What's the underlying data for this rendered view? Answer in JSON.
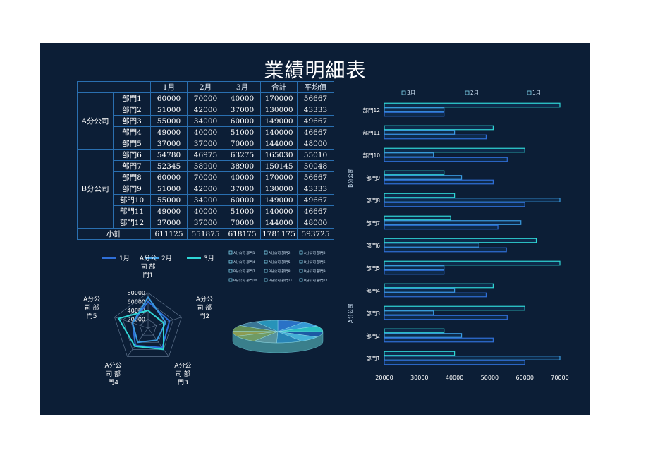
{
  "title": "業績明細表",
  "table": {
    "headers": [
      "",
      "",
      "1月",
      "2月",
      "3月",
      "合計",
      "平均值"
    ],
    "groups": [
      {
        "name": "A分公司",
        "rows": [
          {
            "dept": "部門1",
            "m1": "60000",
            "m2": "70000",
            "m3": "40000",
            "total": "170000",
            "avg": "56667"
          },
          {
            "dept": "部門2",
            "m1": "51000",
            "m2": "42000",
            "m3": "37000",
            "total": "130000",
            "avg": "43333"
          },
          {
            "dept": "部門3",
            "m1": "55000",
            "m2": "34000",
            "m3": "60000",
            "total": "149000",
            "avg": "49667"
          },
          {
            "dept": "部門4",
            "m1": "49000",
            "m2": "40000",
            "m3": "51000",
            "total": "140000",
            "avg": "46667"
          },
          {
            "dept": "部門5",
            "m1": "37000",
            "m2": "37000",
            "m3": "70000",
            "total": "144000",
            "avg": "48000"
          }
        ]
      },
      {
        "name": "B分公司",
        "rows": [
          {
            "dept": "部門6",
            "m1": "54780",
            "m2": "46975",
            "m3": "63275",
            "total": "165030",
            "avg": "55010"
          },
          {
            "dept": "部門7",
            "m1": "52345",
            "m2": "58900",
            "m3": "38900",
            "total": "150145",
            "avg": "50048"
          },
          {
            "dept": "部門8",
            "m1": "60000",
            "m2": "70000",
            "m3": "40000",
            "total": "170000",
            "avg": "56667"
          },
          {
            "dept": "部門9",
            "m1": "51000",
            "m2": "42000",
            "m3": "37000",
            "total": "130000",
            "avg": "43333"
          },
          {
            "dept": "部門10",
            "m1": "55000",
            "m2": "34000",
            "m3": "60000",
            "total": "149000",
            "avg": "49667"
          },
          {
            "dept": "部門11",
            "m1": "49000",
            "m2": "40000",
            "m3": "51000",
            "total": "140000",
            "avg": "46667"
          },
          {
            "dept": "部門12",
            "m1": "37000",
            "m2": "37000",
            "m3": "70000",
            "total": "144000",
            "avg": "48000"
          }
        ]
      }
    ],
    "subtotal": {
      "label": "小計",
      "m1": "611125",
      "m2": "551875",
      "m3": "618175",
      "total": "1781175",
      "avg": "593725"
    }
  },
  "colors": {
    "background": "#0c1e36",
    "border": "#2a6fb0",
    "m1": "#2f6fd8",
    "m2": "#3a9be0",
    "m3": "#2fd6d6"
  },
  "chart_data": [
    {
      "type": "radar",
      "series": [
        {
          "name": "1月",
          "values": [
            60000,
            51000,
            55000,
            49000,
            37000
          ]
        },
        {
          "name": "2月",
          "values": [
            70000,
            42000,
            34000,
            40000,
            37000
          ]
        },
        {
          "name": "3月",
          "values": [
            40000,
            37000,
            60000,
            51000,
            70000
          ]
        }
      ],
      "axis_labels": [
        "A分公\n司 部\n門1",
        "A分公\n司 部\n門2",
        "A分公\n司 部\n門3",
        "A分公\n司 部\n門4",
        "A分公\n司 部\n門5"
      ],
      "ticks": [
        "20000",
        "40000",
        "60000",
        "80000"
      ],
      "rmax": 80000,
      "legend": "top"
    },
    {
      "type": "pie",
      "values": [
        170000,
        130000,
        149000,
        140000,
        144000,
        165030,
        150145,
        170000,
        130000,
        149000,
        140000,
        144000
      ],
      "legend_labels": [
        "A分公司 部門1",
        "A分公司 部門2",
        "A分公司 部門3",
        "A分公司 部門4",
        "A分公司 部門5",
        "B分公司 部門6",
        "B分公司 部門7",
        "B分公司 部門8",
        "B分公司 部門9",
        "B分公司 部門10",
        "B分公司 部門11",
        "B分公司 部門12"
      ],
      "slice_colors": [
        "#2d7bd6",
        "#3aa6e6",
        "#2ecfcf",
        "#1f5fb0",
        "#4bc0e8",
        "#2b8fc4",
        "#5fa0a8",
        "#7aa86a",
        "#9aaa55",
        "#6e9b5a",
        "#3f7fa0",
        "#2aa0c8"
      ]
    },
    {
      "type": "bar",
      "orientation": "horizontal",
      "categories": [
        "部門1",
        "部門2",
        "部門3",
        "部門4",
        "部門5",
        "部門6",
        "部門7",
        "部門8",
        "部門9",
        "部門10",
        "部門11",
        "部門12"
      ],
      "groups": [
        "A分公司",
        "B分公司"
      ],
      "series": [
        {
          "name": "1月",
          "values": [
            60000,
            51000,
            55000,
            49000,
            37000,
            54780,
            52345,
            60000,
            51000,
            55000,
            49000,
            37000
          ]
        },
        {
          "name": "2月",
          "values": [
            70000,
            42000,
            34000,
            40000,
            37000,
            46975,
            58900,
            70000,
            42000,
            34000,
            40000,
            37000
          ]
        },
        {
          "name": "3月",
          "values": [
            40000,
            37000,
            60000,
            51000,
            70000,
            63275,
            38900,
            40000,
            37000,
            60000,
            51000,
            70000
          ]
        }
      ],
      "legend_order": [
        "3月",
        "2月",
        "1月"
      ],
      "xlim": [
        20000,
        70000
      ],
      "xticks": [
        "20000",
        "30000",
        "40000",
        "50000",
        "60000",
        "70000"
      ],
      "legend": "top"
    }
  ]
}
